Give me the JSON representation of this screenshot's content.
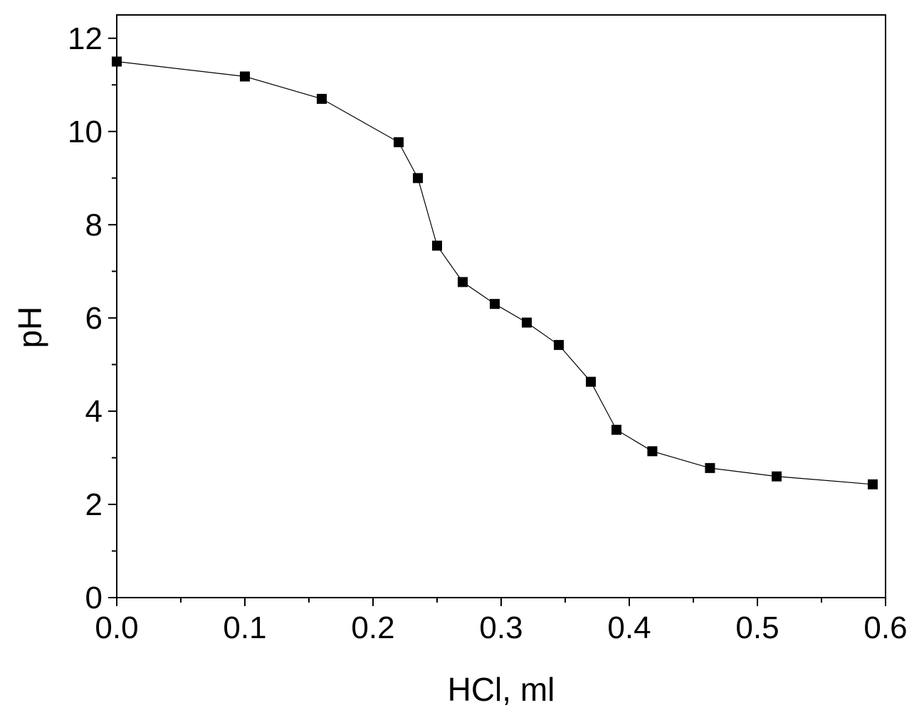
{
  "chart_data": {
    "type": "line",
    "title": "",
    "xlabel": "HCl, ml",
    "ylabel": "pH",
    "xlim": [
      0.0,
      0.6
    ],
    "ylim": [
      0,
      12.5
    ],
    "x_ticks": [
      "0.0",
      "0.1",
      "0.2",
      "0.3",
      "0.4",
      "0.5",
      "0.6"
    ],
    "y_ticks": [
      "0",
      "2",
      "4",
      "6",
      "8",
      "10",
      "12"
    ],
    "grid": false,
    "legend": "none",
    "marker": "square",
    "line_color": "#000000",
    "marker_color": "#000000",
    "series": [
      {
        "x": [
          0.0,
          0.1,
          0.16,
          0.22,
          0.235,
          0.25,
          0.27,
          0.295,
          0.32,
          0.345,
          0.37,
          0.39,
          0.418,
          0.463,
          0.515,
          0.59
        ],
        "y": [
          11.5,
          11.18,
          10.7,
          9.77,
          9.0,
          7.55,
          6.77,
          6.3,
          5.9,
          5.42,
          4.63,
          3.6,
          3.14,
          2.78,
          2.6,
          2.43
        ]
      }
    ]
  }
}
